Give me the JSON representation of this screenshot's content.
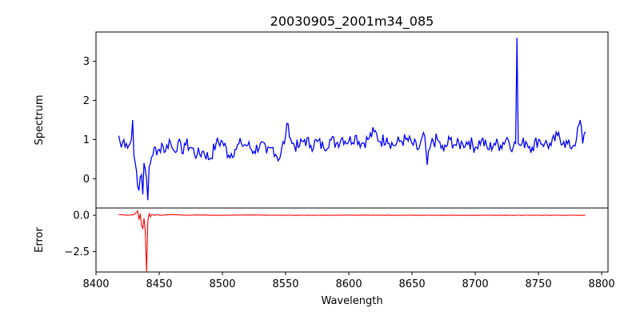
{
  "chart_data": {
    "title": "20030905_2001m34_085",
    "xlabel": "Wavelength",
    "xlim": [
      8400,
      8805
    ],
    "xticks": [
      8400,
      8450,
      8500,
      8550,
      8600,
      8650,
      8700,
      8750,
      8800
    ],
    "x_start": 8418,
    "x_end": 8787,
    "panels": [
      {
        "type": "line",
        "ylabel": "Spectrum",
        "ylim": [
          -0.75,
          3.75
        ],
        "yticks": [
          0,
          1,
          2,
          3
        ],
        "color": "#0000ff",
        "series": {
          "x": [
            8418,
            8420,
            8422,
            8424,
            8426,
            8428,
            8429,
            8430,
            8432,
            8434,
            8436,
            8437,
            8438,
            8440,
            8441,
            8442,
            8444,
            8446,
            8448,
            8450,
            8452,
            8455,
            8458,
            8460,
            8462,
            8465,
            8468,
            8470,
            8475,
            8480,
            8485,
            8490,
            8495,
            8500,
            8505,
            8510,
            8515,
            8520,
            8525,
            8530,
            8535,
            8540,
            8545,
            8550,
            8552,
            8555,
            8560,
            8565,
            8570,
            8575,
            8580,
            8585,
            8590,
            8595,
            8600,
            8605,
            8610,
            8615,
            8620,
            8625,
            8630,
            8635,
            8640,
            8645,
            8650,
            8655,
            8660,
            8662,
            8665,
            8670,
            8675,
            8680,
            8685,
            8690,
            8695,
            8700,
            8705,
            8710,
            8715,
            8720,
            8725,
            8730,
            8732,
            8733,
            8734,
            8736,
            8740,
            8745,
            8750,
            8755,
            8760,
            8765,
            8770,
            8775,
            8780,
            8783,
            8785,
            8787
          ],
          "y": [
            1.1,
            0.8,
            1.0,
            0.9,
            0.85,
            1.0,
            1.5,
            0.6,
            0.2,
            -0.3,
            0.1,
            -0.4,
            0.4,
            0.0,
            -0.55,
            0.3,
            0.55,
            0.8,
            0.6,
            0.75,
            0.9,
            0.7,
            1.0,
            0.8,
            0.7,
            0.95,
            0.65,
            0.9,
            0.8,
            0.6,
            0.7,
            0.5,
            0.9,
            0.95,
            0.6,
            0.75,
            0.9,
            0.85,
            0.7,
            0.9,
            0.65,
            0.8,
            0.5,
            1.1,
            1.4,
            0.9,
            0.8,
            1.0,
            0.85,
            0.95,
            0.8,
            1.0,
            0.9,
            1.05,
            0.95,
            1.1,
            0.9,
            1.0,
            1.2,
            0.95,
            1.05,
            0.85,
            0.95,
            1.0,
            0.9,
            0.75,
            1.1,
            0.35,
            0.9,
            1.0,
            0.7,
            1.0,
            0.85,
            0.9,
            0.95,
            0.8,
            1.0,
            0.75,
            0.9,
            0.85,
            1.05,
            0.8,
            0.9,
            3.6,
            0.9,
            0.85,
            0.95,
            0.8,
            1.0,
            0.9,
            0.85,
            1.1,
            0.95,
            0.8,
            1.0,
            1.5,
            0.9,
            1.2
          ]
        }
      },
      {
        "type": "line",
        "ylabel": "Error",
        "ylim": [
          -3.9,
          0.5
        ],
        "yticks": [
          0.0,
          -2.5
        ],
        "ytick_labels": [
          "0.0",
          "−2.5"
        ],
        "color": "#ff0000",
        "series": {
          "x": [
            8418,
            8425,
            8430,
            8432,
            8433,
            8434,
            8435,
            8436,
            8437,
            8438,
            8439,
            8440,
            8441,
            8442,
            8443,
            8444,
            8446,
            8448,
            8450,
            8460,
            8470,
            8480,
            8500,
            8520,
            8550,
            8600,
            8650,
            8700,
            8750,
            8787
          ],
          "y": [
            0.05,
            0.0,
            0.05,
            0.2,
            0.3,
            -0.3,
            0.1,
            -0.7,
            -0.9,
            -0.2,
            -1.1,
            -3.9,
            -0.4,
            0.1,
            -0.1,
            0.05,
            0.0,
            0.05,
            0.0,
            0.05,
            0.0,
            0.02,
            0.0,
            0.02,
            0.0,
            0.01,
            0.0,
            0.0,
            0.0,
            0.0
          ]
        }
      }
    ]
  }
}
